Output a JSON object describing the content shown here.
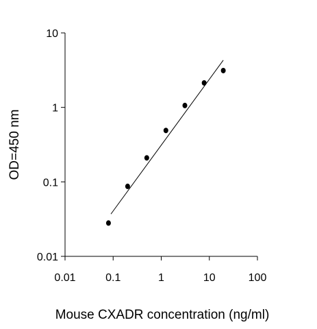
{
  "chart_data": {
    "type": "scatter",
    "x_label": "Mouse CXADR concentration (ng/ml)",
    "y_label": "OD=450 nm",
    "x": [
      0.08,
      0.2,
      0.5,
      1.25,
      3.1,
      7.8,
      19.5
    ],
    "values": [
      0.028,
      0.087,
      0.21,
      0.49,
      1.06,
      2.13,
      3.12
    ],
    "color": "#000000",
    "fit_line": {
      "x": [
        0.09,
        19.5
      ],
      "y": [
        0.037,
        4.3
      ],
      "color": "#000000"
    },
    "xlog": true,
    "ylog": true,
    "xlim": [
      0.01,
      100
    ],
    "ylim": [
      0.01,
      10
    ],
    "xticks": [
      0.01,
      0.1,
      1,
      10,
      100
    ],
    "yticks": [
      0.01,
      0.1,
      1,
      10
    ],
    "grid": false
  }
}
